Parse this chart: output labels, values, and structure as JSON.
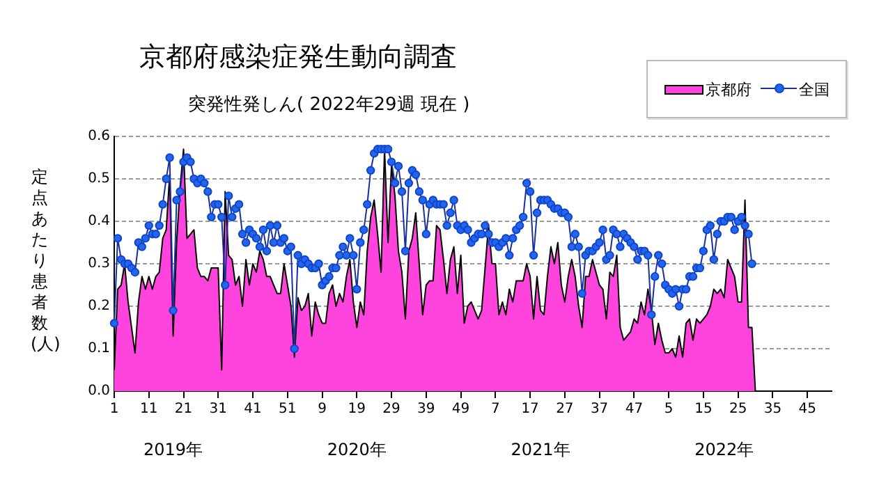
{
  "chart_data": {
    "type": "line",
    "title": "京都府感染症発生動向調査",
    "subtitle": "突発性発しん( 2022年29週 現在 )",
    "ylabel": "定点あたり患者数(人)",
    "annotations": [
      "2019年",
      "2020年",
      "2021年",
      "2022年"
    ],
    "categories": [
      "1",
      null,
      null,
      null,
      null,
      null,
      null,
      null,
      null,
      null,
      "11",
      null,
      null,
      null,
      null,
      null,
      null,
      null,
      null,
      null,
      "21",
      null,
      null,
      null,
      null,
      null,
      null,
      null,
      null,
      null,
      "31",
      null,
      null,
      null,
      null,
      null,
      null,
      null,
      null,
      null,
      "41",
      null,
      null,
      null,
      null,
      null,
      null,
      null,
      null,
      null,
      "51",
      null,
      null,
      null,
      null,
      null,
      null,
      null,
      null,
      null,
      "9",
      null,
      null,
      null,
      null,
      null,
      null,
      null,
      null,
      null,
      "19",
      null,
      null,
      null,
      null,
      null,
      null,
      null,
      null,
      null,
      "29",
      null,
      null,
      null,
      null,
      null,
      null,
      null,
      null,
      null,
      "39",
      null,
      null,
      null,
      null,
      null,
      null,
      null,
      null,
      null,
      "49",
      null,
      null,
      null,
      null,
      null,
      null,
      null,
      null,
      null,
      "7",
      null,
      null,
      null,
      null,
      null,
      null,
      null,
      null,
      null,
      "17",
      null,
      null,
      null,
      null,
      null,
      null,
      null,
      null,
      null,
      "27",
      null,
      null,
      null,
      null,
      null,
      null,
      null,
      null,
      null,
      "37",
      null,
      null,
      null,
      null,
      null,
      null,
      null,
      null,
      null,
      "47",
      null,
      null,
      null,
      null,
      null,
      null,
      null,
      null,
      null,
      "5",
      null,
      null,
      null,
      null,
      null,
      null,
      null,
      null,
      null,
      "15",
      null,
      null,
      null,
      null,
      null,
      null,
      null,
      null,
      null,
      "25",
      null,
      null,
      null,
      null,
      null,
      null,
      null,
      null,
      null,
      "35",
      null,
      null,
      null,
      null,
      null,
      null,
      null,
      null,
      null,
      "45",
      null,
      null,
      null,
      null,
      null,
      null,
      null
    ],
    "series": [
      {
        "name": "京都府",
        "type": "area",
        "color": "#ff44dd",
        "values": [
          0.05,
          0.24,
          0.25,
          0.3,
          0.21,
          0.15,
          0.09,
          0.21,
          0.27,
          0.24,
          0.27,
          0.24,
          0.27,
          0.28,
          0.36,
          0.38,
          0.51,
          0.13,
          0.35,
          0.48,
          0.57,
          0.36,
          0.37,
          0.38,
          0.29,
          0.27,
          0.27,
          0.26,
          0.29,
          0.29,
          0.29,
          0.05,
          0.47,
          0.32,
          0.31,
          0.25,
          0.27,
          0.2,
          0.31,
          0.25,
          0.3,
          0.28,
          0.33,
          0.31,
          0.27,
          0.27,
          0.25,
          0.23,
          0.23,
          0.3,
          0.25,
          0.2,
          0.08,
          0.22,
          0.19,
          0.2,
          0.23,
          0.13,
          0.21,
          0.18,
          0.16,
          0.16,
          0.23,
          0.25,
          0.2,
          0.23,
          0.21,
          0.27,
          0.31,
          0.21,
          0.15,
          0.21,
          0.18,
          0.33,
          0.41,
          0.45,
          0.37,
          0.28,
          0.57,
          0.35,
          0.53,
          0.46,
          0.33,
          0.28,
          0.17,
          0.33,
          0.36,
          0.42,
          0.3,
          0.18,
          0.25,
          0.26,
          0.26,
          0.39,
          0.38,
          0.31,
          0.23,
          0.31,
          0.34,
          0.23,
          0.32,
          0.16,
          0.2,
          0.21,
          0.19,
          0.17,
          0.19,
          0.29,
          0.39,
          0.3,
          0.3,
          0.18,
          0.21,
          0.18,
          0.24,
          0.21,
          0.26,
          0.26,
          0.26,
          0.3,
          0.27,
          0.17,
          0.27,
          0.19,
          0.18,
          0.27,
          0.34,
          0.3,
          0.35,
          0.25,
          0.21,
          0.27,
          0.31,
          0.27,
          0.2,
          0.15,
          0.27,
          0.27,
          0.31,
          0.28,
          0.25,
          0.24,
          0.17,
          0.28,
          0.27,
          0.32,
          0.15,
          0.12,
          0.13,
          0.14,
          0.17,
          0.16,
          0.21,
          0.18,
          0.24,
          0.19,
          0.11,
          0.16,
          0.12,
          0.09,
          0.09,
          0.1,
          0.08,
          0.13,
          0.08,
          0.16,
          0.17,
          0.12,
          0.17,
          0.16,
          0.17,
          0.18,
          0.2,
          0.24,
          0.23,
          0.24,
          0.22,
          0.31,
          0.29,
          0.27,
          0.21,
          0.21,
          0.45,
          0.15,
          0.15,
          0,
          null,
          null,
          null,
          null,
          null,
          null,
          null,
          null,
          null,
          null,
          null,
          null,
          null,
          null,
          null,
          null,
          null,
          null,
          null,
          null,
          null,
          null
        ]
      },
      {
        "name": "全国",
        "type": "line",
        "color": "#2266ee",
        "marker": "circle",
        "values": [
          0.16,
          0.36,
          0.31,
          0.3,
          0.3,
          0.29,
          0.28,
          0.35,
          0.34,
          0.36,
          0.39,
          0.37,
          0.37,
          0.39,
          0.44,
          0.5,
          0.55,
          0.19,
          0.45,
          0.47,
          0.54,
          0.55,
          0.54,
          0.5,
          0.49,
          0.5,
          0.49,
          0.47,
          0.41,
          0.44,
          0.44,
          0.41,
          0.25,
          0.46,
          0.41,
          0.43,
          0.44,
          0.37,
          0.35,
          0.38,
          0.37,
          0.36,
          0.34,
          0.38,
          0.33,
          0.39,
          0.35,
          0.39,
          0.35,
          0.36,
          0.33,
          0.34,
          0.1,
          0.32,
          0.3,
          0.31,
          0.3,
          0.29,
          0.29,
          0.3,
          0.25,
          0.26,
          0.27,
          0.29,
          0.29,
          0.32,
          0.34,
          0.32,
          0.36,
          0.32,
          0.24,
          0.35,
          0.38,
          0.44,
          0.52,
          0.56,
          0.57,
          0.57,
          0.57,
          0.57,
          0.54,
          0.49,
          0.53,
          0.47,
          0.33,
          0.49,
          0.52,
          0.51,
          0.47,
          0.45,
          0.37,
          0.44,
          0.45,
          0.44,
          0.44,
          0.44,
          0.39,
          0.42,
          0.45,
          0.39,
          0.38,
          0.39,
          0.38,
          0.35,
          0.36,
          0.37,
          0.37,
          0.39,
          0.37,
          0.35,
          0.35,
          0.34,
          0.35,
          0.36,
          0.32,
          0.36,
          0.38,
          0.39,
          0.41,
          0.49,
          0.47,
          0.32,
          0.42,
          0.45,
          0.45,
          0.45,
          0.44,
          0.43,
          0.43,
          0.42,
          0.42,
          0.41,
          0.34,
          0.37,
          0.34,
          0.23,
          0.32,
          0.33,
          0.33,
          0.34,
          0.35,
          0.38,
          0.31,
          0.32,
          0.38,
          0.37,
          0.34,
          0.37,
          0.36,
          0.35,
          0.34,
          0.31,
          0.33,
          0.33,
          0.32,
          0.18,
          0.27,
          0.32,
          0.3,
          0.25,
          0.24,
          0.23,
          0.24,
          0.2,
          0.24,
          0.24,
          0.27,
          0.27,
          0.29,
          0.29,
          0.33,
          0.38,
          0.39,
          0.31,
          0.37,
          0.4,
          0.4,
          0.41,
          0.41,
          0.38,
          0.4,
          0.41,
          0.39,
          0.37,
          0.3,
          null,
          null,
          null,
          null,
          null,
          null,
          null,
          null,
          null,
          null,
          null,
          null,
          null,
          null,
          null,
          null,
          null,
          null,
          null,
          null,
          null,
          null,
          null
        ]
      }
    ],
    "ylim": [
      0,
      0.6
    ],
    "yticks": [
      {
        "value": 0,
        "label": "0.0"
      },
      {
        "value": 0.1,
        "label": "0.1"
      },
      {
        "value": 0.2,
        "label": "0.2"
      },
      {
        "value": 0.3,
        "label": "0.3"
      },
      {
        "value": 0.4,
        "label": "0.4"
      },
      {
        "value": 0.5,
        "label": "0.5"
      },
      {
        "value": 0.6,
        "label": "0.6"
      }
    ],
    "grid": "y",
    "legend": "top right"
  }
}
